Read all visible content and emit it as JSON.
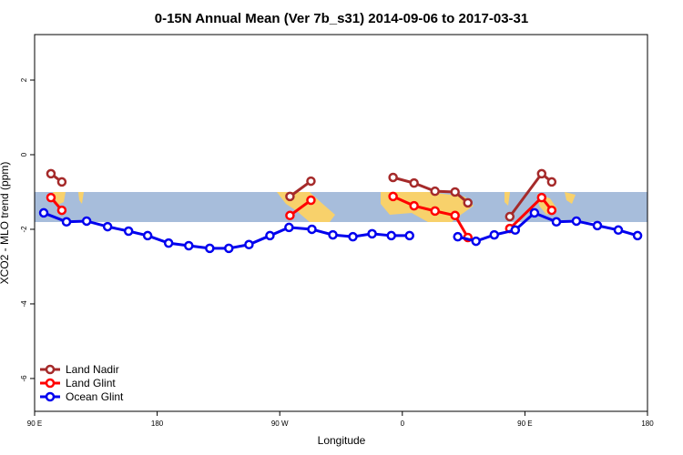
{
  "chart_data": {
    "type": "line",
    "title": "0-15N Annual Mean (Ver 7b_s31)   2014-09-06 to 2017-03-31",
    "xlabel": "Longitude",
    "ylabel": "XCO2 - MLO trend (ppm)",
    "xlim": [
      90,
      540
    ],
    "ylim": [
      -6.88,
      3.22
    ],
    "xticks": [
      {
        "value": 90,
        "label": "90 E"
      },
      180,
      {
        "value": 270,
        "label": "90 W"
      },
      {
        "value": 360,
        "label": "0"
      },
      {
        "value": 450,
        "label": "90 E"
      },
      {
        "value": 540,
        "label": "180"
      }
    ],
    "yticks": [
      2,
      0,
      -2,
      -4,
      -6
    ],
    "legend": "bottom-left",
    "series": [
      {
        "name": "Land Nadir",
        "color": "#a52a2a",
        "x": [
          102,
          110,
          null,
          277.5,
          292.9,
          null,
          353.2,
          368.6,
          384,
          398.7,
          408.1,
          null,
          438.9,
          462.3,
          469.7
        ],
        "values": [
          -0.51,
          -0.73,
          null,
          -1.12,
          -0.71,
          null,
          -0.61,
          -0.76,
          -0.98,
          -1.0,
          -1.29,
          null,
          -1.66,
          -0.51,
          -0.73
        ]
      },
      {
        "name": "Land Glint",
        "color": "#ff0000",
        "x": [
          102,
          110,
          null,
          277.5,
          292.9,
          null,
          353.2,
          368.6,
          384,
          398.7,
          408.1,
          null,
          438.9,
          462.3,
          469.7
        ],
        "values": [
          -1.15,
          -1.49,
          null,
          -1.63,
          -1.22,
          null,
          -1.12,
          -1.37,
          -1.51,
          -1.63,
          -2.22,
          null,
          -1.98,
          -1.15,
          -1.49
        ]
      },
      {
        "name": "Ocean Glint",
        "color": "#0000ee",
        "x": [
          96.7,
          113.4,
          128.2,
          143.6,
          159,
          173,
          188.4,
          203.2,
          218.6,
          232.6,
          247.4,
          262.8,
          276.8,
          293.6,
          309,
          323.7,
          337.8,
          351.9,
          365.3,
          null,
          400.7,
          414.1,
          427.5,
          442.9,
          457,
          473.1,
          487.8,
          503.2,
          518.6,
          532.7
        ],
        "values": [
          -1.56,
          -1.8,
          -1.78,
          -1.93,
          -2.05,
          -2.17,
          -2.37,
          -2.44,
          -2.51,
          -2.51,
          -2.41,
          -2.17,
          -1.95,
          -2.0,
          -2.15,
          -2.2,
          -2.12,
          -2.17,
          -2.17,
          null,
          -2.2,
          -2.32,
          -2.15,
          -2.02,
          -1.56,
          -1.8,
          -1.78,
          -1.9,
          -2.02,
          -2.17
        ]
      }
    ]
  }
}
